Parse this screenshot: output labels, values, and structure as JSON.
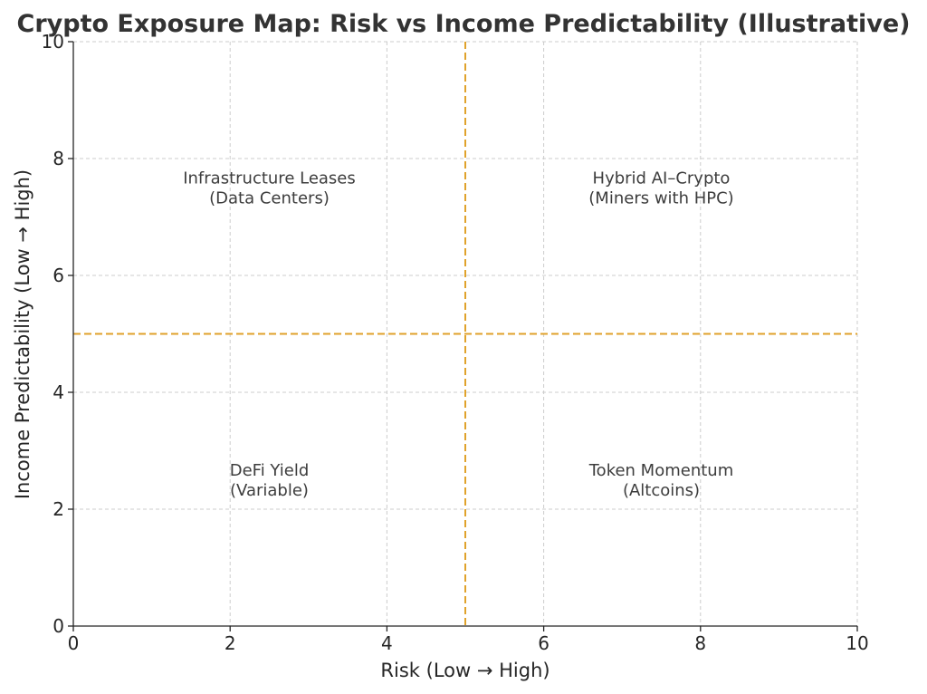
{
  "chart_data": {
    "type": "scatter",
    "title": "Crypto Exposure Map: Risk vs Income Predictability (Illustrative)",
    "xlabel": "Risk (Low → High)",
    "ylabel": "Income Predictability (Low → High)",
    "xlim": [
      0,
      10
    ],
    "ylim": [
      0,
      10
    ],
    "xticks": [
      0,
      2,
      4,
      6,
      8,
      10
    ],
    "yticks": [
      0,
      2,
      4,
      6,
      8,
      10
    ],
    "grid": true,
    "threshold_lines": [
      {
        "axis": "x",
        "value": 5,
        "color": "#e0a22b",
        "style": "dashed"
      },
      {
        "axis": "y",
        "value": 5,
        "color": "#e0a22b",
        "style": "dashed"
      }
    ],
    "annotations": [
      {
        "lines": [
          "Infrastructure Leases",
          "(Data Centers)"
        ],
        "x": 2.5,
        "y": 7.5
      },
      {
        "lines": [
          "Hybrid AI–Crypto",
          "(Miners with HPC)"
        ],
        "x": 7.5,
        "y": 7.5
      },
      {
        "lines": [
          "DeFi Yield",
          "(Variable)"
        ],
        "x": 2.5,
        "y": 2.5
      },
      {
        "lines": [
          "Token Momentum",
          "(Altcoins)"
        ],
        "x": 7.5,
        "y": 2.5
      }
    ]
  }
}
